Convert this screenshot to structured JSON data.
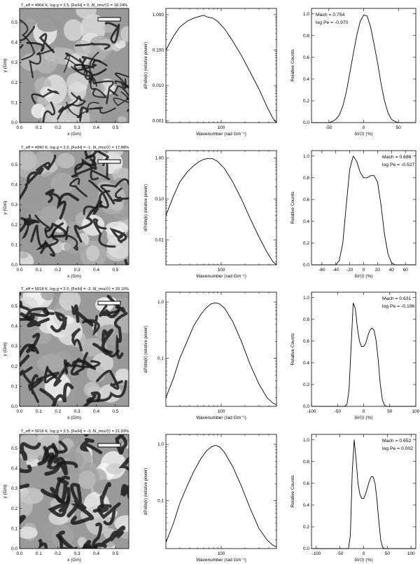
{
  "figure": {
    "rows": [
      {
        "title": "T_eff = 4964 K, log g = 2.5, [Fe/H] = 0, δI_rms/⟨I⟩ = 18.24%",
        "mach_label": "Mach = 0.754",
        "pe_label": "log Pe = -0.970"
      },
      {
        "title": "T_eff = 4990 K, log g = 2.5, [Fe/H] = -1, δI_rms/⟨I⟩ = 17.88%",
        "mach_label": "Mach = 0.686",
        "pe_label": "log Pe = -0.527"
      },
      {
        "title": "T_eff = 5018 K, log g = 2.5, [Fe/H] = -2, δI_rms/⟨I⟩ = 20.10%",
        "mach_label": "Mach = 0.631",
        "pe_label": "log Pe = -0.196"
      },
      {
        "title": "T_eff = 5018 K, log g = 2.5, [Fe/H] = -3, δI_rms/⟨I⟩ = 21.93%",
        "mach_label": "Mach = 0.652",
        "pe_label": "log Pe = 0.002"
      }
    ]
  },
  "chart_data": [
    {
      "type": "image",
      "row": 1,
      "xlabel": "x (Gm)",
      "ylabel": "y (Gm)",
      "xticks": [
        "0.0",
        "0.1",
        "0.2",
        "0.3",
        "0.4",
        "0.5"
      ],
      "yticks": [
        "0.0",
        "0.1",
        "0.2",
        "0.3",
        "0.4",
        "0.5"
      ],
      "xlim": [
        0,
        0.57
      ],
      "ylim": [
        0,
        0.57
      ]
    },
    {
      "type": "line",
      "row": 1,
      "xlabel": "Wavenumber (rad Gm⁻¹)",
      "ylabel": "dP/dln(k) (relative power)",
      "log_x": true,
      "log_y": true,
      "xlim": [
        20,
        500
      ],
      "ylim": [
        0.0009,
        1.5
      ],
      "xticks": [
        "100"
      ],
      "yticks": [
        "0.001",
        "0.010",
        "0.100",
        "1.000"
      ],
      "series": [
        {
          "x": [
            20,
            25,
            30,
            37,
            45,
            52,
            60,
            68,
            78,
            90,
            110,
            140,
            180,
            230,
            300,
            380,
            450,
            500
          ],
          "y": [
            0.1,
            0.25,
            0.45,
            0.65,
            0.8,
            0.88,
            0.95,
            0.85,
            0.8,
            0.65,
            0.4,
            0.18,
            0.07,
            0.025,
            0.008,
            0.0025,
            0.0012,
            0.0009
          ]
        }
      ]
    },
    {
      "type": "line",
      "row": 1,
      "xlabel": "δI/⟨I⟩ (%)",
      "ylabel": "Relative Counts",
      "xlim": [
        -75,
        75
      ],
      "ylim": [
        0,
        1.05
      ],
      "xticks": [
        "-50",
        "0",
        "50"
      ],
      "yticks": [
        "0.0",
        "0.2",
        "0.4",
        "0.6",
        "0.8",
        "1.0"
      ],
      "series": [
        {
          "x": [
            -75,
            -50,
            -45,
            -40,
            -35,
            -30,
            -25,
            -20,
            -15,
            -10,
            -5,
            0,
            5,
            10,
            15,
            20,
            25,
            30,
            35,
            40,
            45,
            50,
            75
          ],
          "y": [
            0,
            0,
            0.01,
            0.03,
            0.07,
            0.15,
            0.28,
            0.45,
            0.63,
            0.8,
            0.93,
            0.99,
            0.98,
            0.88,
            0.72,
            0.55,
            0.36,
            0.2,
            0.09,
            0.03,
            0.01,
            0,
            0
          ]
        }
      ]
    },
    {
      "type": "image",
      "row": 2,
      "xlabel": "x (Gm)",
      "ylabel": "y (Gm)",
      "xticks": [
        "0.0",
        "0.1",
        "0.2",
        "0.3",
        "0.4",
        "0.5"
      ],
      "yticks": [
        "0.0",
        "0.1",
        "0.2",
        "0.3",
        "0.4",
        "0.5"
      ],
      "xlim": [
        0,
        0.57
      ],
      "ylim": [
        0,
        0.57
      ]
    },
    {
      "type": "line",
      "row": 2,
      "xlabel": "Wavenumber (rad Gm⁻¹)",
      "ylabel": "dP/dln(k) (relative power)",
      "log_x": true,
      "log_y": true,
      "xlim": [
        20,
        500
      ],
      "ylim": [
        0.0025,
        1.5
      ],
      "xticks": [
        "100"
      ],
      "yticks": [
        "0.01",
        "0.10",
        "1.00"
      ],
      "series": [
        {
          "x": [
            20,
            25,
            30,
            37,
            45,
            52,
            60,
            68,
            78,
            90,
            110,
            140,
            180,
            230,
            300,
            380,
            450,
            500
          ],
          "y": [
            0.04,
            0.12,
            0.26,
            0.45,
            0.65,
            0.8,
            0.92,
            0.97,
            0.95,
            0.82,
            0.55,
            0.26,
            0.1,
            0.035,
            0.012,
            0.005,
            0.003,
            0.0025
          ]
        }
      ]
    },
    {
      "type": "line",
      "row": 2,
      "xlabel": "δI/⟨I⟩ (%)",
      "ylabel": "Relative Counts",
      "xlim": [
        -75,
        75
      ],
      "ylim": [
        0,
        1.05
      ],
      "xticks": [
        "-60",
        "-40",
        "-20",
        "0",
        "20",
        "40",
        "60"
      ],
      "yticks": [
        "0.0",
        "0.2",
        "0.4",
        "0.6",
        "0.8",
        "1.0"
      ],
      "series": [
        {
          "x": [
            -75,
            -40,
            -35,
            -30,
            -25,
            -20,
            -15,
            -10,
            -5,
            0,
            5,
            10,
            15,
            20,
            25,
            30,
            35,
            40,
            45,
            75
          ],
          "y": [
            0,
            0,
            0.04,
            0.2,
            0.55,
            0.88,
            1.0,
            0.95,
            0.85,
            0.8,
            0.8,
            0.82,
            0.82,
            0.76,
            0.55,
            0.28,
            0.1,
            0.02,
            0,
            0
          ]
        }
      ]
    },
    {
      "type": "image",
      "row": 3,
      "xlabel": "x (Gm)",
      "ylabel": "y (Gm)",
      "xticks": [
        "0.0",
        "0.1",
        "0.2",
        "0.3",
        "0.4",
        "0.5"
      ],
      "yticks": [
        "0.0",
        "0.1",
        "0.2",
        "0.3",
        "0.4",
        "0.5"
      ],
      "xlim": [
        0,
        0.57
      ],
      "ylim": [
        0,
        0.57
      ]
    },
    {
      "type": "line",
      "row": 3,
      "xlabel": "Wavenumber (rad Gm⁻¹)",
      "ylabel": "dP/dln(k) (relative power)",
      "log_x": true,
      "log_y": true,
      "xlim": [
        20,
        500
      ],
      "ylim": [
        0.014,
        1.5
      ],
      "xticks": [
        "100"
      ],
      "yticks": [
        "0.1",
        "1.0"
      ],
      "series": [
        {
          "x": [
            20,
            25,
            30,
            37,
            45,
            55,
            65,
            75,
            85,
            95,
            110,
            140,
            180,
            230,
            300,
            380,
            450,
            500
          ],
          "y": [
            0.02,
            0.045,
            0.1,
            0.2,
            0.38,
            0.6,
            0.8,
            0.93,
            0.97,
            0.93,
            0.78,
            0.45,
            0.2,
            0.08,
            0.035,
            0.02,
            0.016,
            0.015
          ]
        }
      ]
    },
    {
      "type": "line",
      "row": 3,
      "xlabel": "δI/⟨I⟩ (%)",
      "ylabel": "Relative Counts",
      "xlim": [
        -100,
        100
      ],
      "ylim": [
        0,
        1.05
      ],
      "xticks": [
        "-100",
        "-50",
        "0",
        "50",
        "100"
      ],
      "yticks": [
        "0.0",
        "0.2",
        "0.4",
        "0.6",
        "0.8",
        "1.0"
      ],
      "series": [
        {
          "x": [
            -100,
            -36,
            -32,
            -28,
            -24,
            -20,
            -16,
            -12,
            -8,
            -4,
            0,
            4,
            8,
            12,
            16,
            20,
            24,
            28,
            32,
            36,
            40,
            44,
            100
          ],
          "y": [
            0,
            0,
            0.02,
            0.15,
            0.55,
            0.95,
            0.9,
            0.72,
            0.6,
            0.55,
            0.55,
            0.58,
            0.65,
            0.7,
            0.72,
            0.7,
            0.6,
            0.42,
            0.2,
            0.06,
            0.01,
            0,
            0
          ]
        }
      ]
    },
    {
      "type": "image",
      "row": 4,
      "xlabel": "x (Gm)",
      "ylabel": "y (Gm)",
      "xticks": [
        "0.0",
        "0.1",
        "0.2",
        "0.3",
        "0.4",
        "0.5"
      ],
      "yticks": [
        "0.0",
        "0.1",
        "0.2",
        "0.3",
        "0.4",
        "0.5"
      ],
      "xlim": [
        0,
        0.57
      ],
      "ylim": [
        0,
        0.57
      ]
    },
    {
      "type": "line",
      "row": 4,
      "xlabel": "Wavenumber (rad Gm⁻¹)",
      "ylabel": "dP/dln(k) (relative power)",
      "log_x": true,
      "log_y": true,
      "xlim": [
        20,
        500
      ],
      "ylim": [
        0.014,
        1.5
      ],
      "xticks": [
        "100"
      ],
      "yticks": [
        "0.1",
        "1.0"
      ],
      "series": [
        {
          "x": [
            20,
            25,
            30,
            37,
            45,
            55,
            65,
            75,
            85,
            95,
            110,
            140,
            180,
            230,
            300,
            380,
            450,
            500
          ],
          "y": [
            0.018,
            0.04,
            0.09,
            0.18,
            0.33,
            0.55,
            0.76,
            0.9,
            0.96,
            0.9,
            0.72,
            0.4,
            0.18,
            0.075,
            0.032,
            0.02,
            0.016,
            0.015
          ]
        }
      ]
    },
    {
      "type": "line",
      "row": 4,
      "xlabel": "δI/⟨I⟩ (%)",
      "ylabel": "Relative Counts",
      "xlim": [
        -110,
        110
      ],
      "ylim": [
        0,
        1.05
      ],
      "xticks": [
        "-100",
        "-50",
        "0",
        "50",
        "100"
      ],
      "yticks": [
        "0.0",
        "0.2",
        "0.4",
        "0.6",
        "0.8",
        "1.0"
      ],
      "series": [
        {
          "x": [
            -110,
            -32,
            -28,
            -24,
            -20,
            -16,
            -12,
            -8,
            -4,
            0,
            4,
            8,
            12,
            16,
            20,
            24,
            28,
            32,
            36,
            40,
            44,
            110
          ],
          "y": [
            0,
            0,
            0.12,
            0.7,
            1.0,
            0.82,
            0.6,
            0.5,
            0.46,
            0.46,
            0.5,
            0.56,
            0.62,
            0.66,
            0.66,
            0.6,
            0.45,
            0.25,
            0.08,
            0.01,
            0,
            0
          ]
        }
      ]
    }
  ]
}
